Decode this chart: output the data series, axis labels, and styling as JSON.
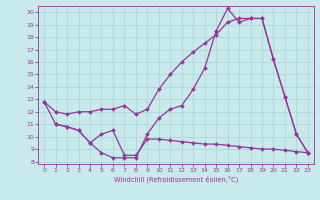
{
  "xlabel": "Windchill (Refroidissement éolien,°C)",
  "background_color": "#c8eaea",
  "line_color": "#993399",
  "grid_color": "#a8d4d4",
  "xlim": [
    -0.5,
    23.5
  ],
  "ylim": [
    7.8,
    20.5
  ],
  "xticks": [
    0,
    1,
    2,
    3,
    4,
    5,
    6,
    7,
    8,
    9,
    10,
    11,
    12,
    13,
    14,
    15,
    16,
    17,
    18,
    19,
    20,
    21,
    22,
    23
  ],
  "yticks": [
    8,
    9,
    10,
    11,
    12,
    13,
    14,
    15,
    16,
    17,
    18,
    19,
    20
  ],
  "line1_x": [
    0,
    1,
    2,
    3,
    4,
    5,
    6,
    7,
    8,
    9,
    10,
    11,
    12,
    13,
    14,
    15,
    16,
    17,
    18,
    19,
    20,
    21,
    22,
    23
  ],
  "line1_y": [
    12.8,
    12.0,
    11.8,
    12.0,
    12.0,
    12.2,
    12.2,
    12.5,
    11.8,
    12.2,
    13.8,
    15.0,
    16.0,
    16.8,
    17.5,
    18.2,
    19.2,
    19.5,
    19.5,
    19.5,
    16.2,
    13.2,
    10.2,
    8.7
  ],
  "line2_x": [
    0,
    1,
    2,
    3,
    4,
    5,
    6,
    7,
    8,
    9,
    10,
    11,
    12,
    13,
    14,
    15,
    16,
    17,
    18,
    19,
    20,
    21,
    22,
    23
  ],
  "line2_y": [
    12.8,
    11.0,
    10.8,
    10.5,
    9.5,
    8.7,
    8.3,
    8.3,
    8.3,
    10.2,
    11.5,
    12.2,
    12.5,
    13.8,
    15.5,
    18.5,
    20.3,
    19.2,
    19.5,
    19.5,
    16.2,
    13.2,
    10.2,
    8.7
  ],
  "line3_x": [
    1,
    2,
    3,
    4,
    5,
    6,
    7,
    8,
    9,
    10,
    11,
    12,
    13,
    14,
    15,
    16,
    17,
    18,
    19,
    20,
    21,
    22,
    23
  ],
  "line3_y": [
    11.0,
    10.8,
    10.5,
    9.5,
    10.2,
    10.5,
    8.5,
    8.5,
    9.8,
    9.8,
    9.7,
    9.6,
    9.5,
    9.4,
    9.4,
    9.3,
    9.2,
    9.1,
    9.0,
    9.0,
    8.9,
    8.8,
    8.7
  ]
}
